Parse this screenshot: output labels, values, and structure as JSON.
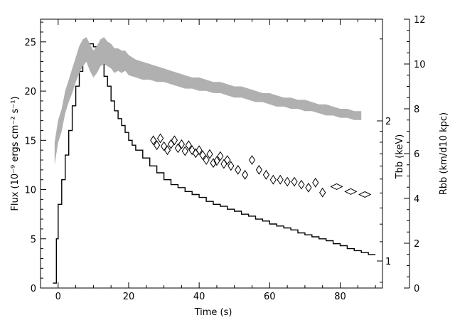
{
  "chart_data": {
    "type": "line",
    "xlabel": "Time (s)",
    "ylabel_left": "Flux (10⁻⁹ ergs cm⁻² s⁻¹)",
    "ylabel_right_inner": "Tbb (keV)",
    "ylabel_right_outer": "Rbb (km/d10 kpc)",
    "xlim": [
      -5,
      92
    ],
    "ylim_left": [
      0,
      27.3
    ],
    "ylim_right_outer": [
      0,
      12
    ],
    "right_inner_scale": "log",
    "xticks": [
      0,
      20,
      40,
      60,
      80
    ],
    "yticks_left": [
      0,
      5,
      10,
      15,
      20,
      25
    ],
    "yticks_right_inner": [
      1,
      2
    ],
    "yticks_right_outer": [
      0,
      2,
      4,
      6,
      8,
      10,
      12
    ],
    "grid": false,
    "series": [
      {
        "style": "line",
        "color": "#000000",
        "axis": "left",
        "note": "flux light curve (binned steps)",
        "x": [
          -1.5,
          -0.5,
          0,
          1,
          2,
          3,
          4,
          5,
          6,
          7,
          8,
          9,
          10,
          11,
          12,
          13,
          14,
          15,
          16,
          17,
          18,
          19,
          20,
          21,
          22,
          24,
          26,
          28,
          30,
          32,
          34,
          36,
          38,
          40,
          42,
          44,
          46,
          48,
          50,
          52,
          54,
          56,
          58,
          60,
          62,
          64,
          66,
          68,
          70,
          72,
          74,
          76,
          78,
          80,
          82,
          84,
          86,
          88,
          90
        ],
        "y": [
          0.5,
          5.0,
          8.5,
          11.0,
          13.5,
          16.0,
          18.5,
          20.5,
          22.0,
          23.5,
          24.5,
          24.8,
          24.5,
          24.0,
          22.8,
          21.5,
          20.5,
          19.0,
          18.0,
          17.2,
          16.5,
          15.8,
          15.0,
          14.5,
          14.0,
          13.2,
          12.4,
          11.7,
          11.0,
          10.5,
          10.2,
          9.8,
          9.5,
          9.2,
          8.8,
          8.5,
          8.3,
          8.0,
          7.8,
          7.5,
          7.3,
          7.0,
          6.8,
          6.5,
          6.3,
          6.1,
          5.9,
          5.6,
          5.4,
          5.2,
          5.0,
          4.8,
          4.5,
          4.3,
          4.0,
          3.8,
          3.6,
          3.4,
          3.4
        ]
      },
      {
        "style": "band",
        "color": "#b0b0b0",
        "axis": "right_outer",
        "note": "blackbody radius band",
        "x": [
          -1,
          0,
          1,
          2,
          3,
          4,
          5,
          6,
          7,
          8,
          9,
          10,
          11,
          12,
          13,
          14,
          15,
          16,
          17,
          18,
          19,
          20,
          22,
          24,
          26,
          28,
          30,
          32,
          34,
          36,
          38,
          40,
          42,
          44,
          46,
          48,
          50,
          52,
          54,
          56,
          58,
          60,
          62,
          64,
          66,
          68,
          70,
          72,
          74,
          76,
          78,
          80,
          82,
          84,
          86
        ],
        "lo": [
          5.5,
          6.5,
          7.0,
          7.8,
          8.3,
          8.7,
          9.2,
          9.6,
          9.9,
          10.1,
          9.7,
          9.4,
          9.6,
          9.9,
          10.0,
          9.9,
          9.8,
          9.6,
          9.7,
          9.6,
          9.7,
          9.5,
          9.4,
          9.3,
          9.3,
          9.2,
          9.2,
          9.1,
          9.0,
          8.9,
          8.9,
          8.8,
          8.8,
          8.7,
          8.7,
          8.6,
          8.5,
          8.5,
          8.4,
          8.3,
          8.3,
          8.2,
          8.1,
          8.1,
          8.0,
          8.0,
          7.9,
          7.9,
          7.8,
          7.7,
          7.7,
          7.6,
          7.6,
          7.5,
          7.5
        ],
        "hi": [
          6.5,
          7.5,
          8.0,
          8.8,
          9.3,
          9.8,
          10.3,
          10.8,
          11.1,
          11.2,
          10.9,
          10.6,
          10.8,
          11.1,
          11.2,
          11.0,
          10.9,
          10.7,
          10.7,
          10.6,
          10.6,
          10.4,
          10.2,
          10.1,
          10.0,
          9.9,
          9.8,
          9.7,
          9.6,
          9.5,
          9.4,
          9.4,
          9.3,
          9.2,
          9.2,
          9.1,
          9.0,
          9.0,
          8.9,
          8.8,
          8.7,
          8.7,
          8.6,
          8.5,
          8.5,
          8.4,
          8.4,
          8.3,
          8.2,
          8.2,
          8.1,
          8.0,
          8.0,
          7.9,
          7.9
        ]
      },
      {
        "style": "diamond",
        "color": "#000000",
        "axis": "left",
        "note": "blackbody temperature points",
        "x": [
          27,
          28,
          29,
          30,
          31,
          32,
          33,
          34,
          35,
          36,
          37,
          38,
          39,
          40,
          41,
          42,
          43,
          44,
          45,
          46,
          47,
          48,
          49,
          51,
          53,
          55,
          57,
          59,
          61,
          63,
          65,
          67,
          69,
          71,
          73,
          75,
          79,
          83,
          87
        ],
        "y": [
          15.0,
          14.5,
          15.2,
          14.4,
          14.0,
          14.6,
          15.0,
          14.2,
          14.6,
          13.9,
          14.5,
          14.0,
          13.7,
          14.0,
          13.5,
          13.0,
          13.6,
          12.7,
          12.9,
          13.4,
          12.6,
          13.0,
          12.4,
          12.0,
          11.5,
          13.0,
          12.0,
          11.5,
          11.0,
          11.0,
          10.8,
          10.8,
          10.5,
          10.2,
          10.7,
          9.7,
          10.3,
          9.8,
          9.5
        ]
      }
    ]
  }
}
